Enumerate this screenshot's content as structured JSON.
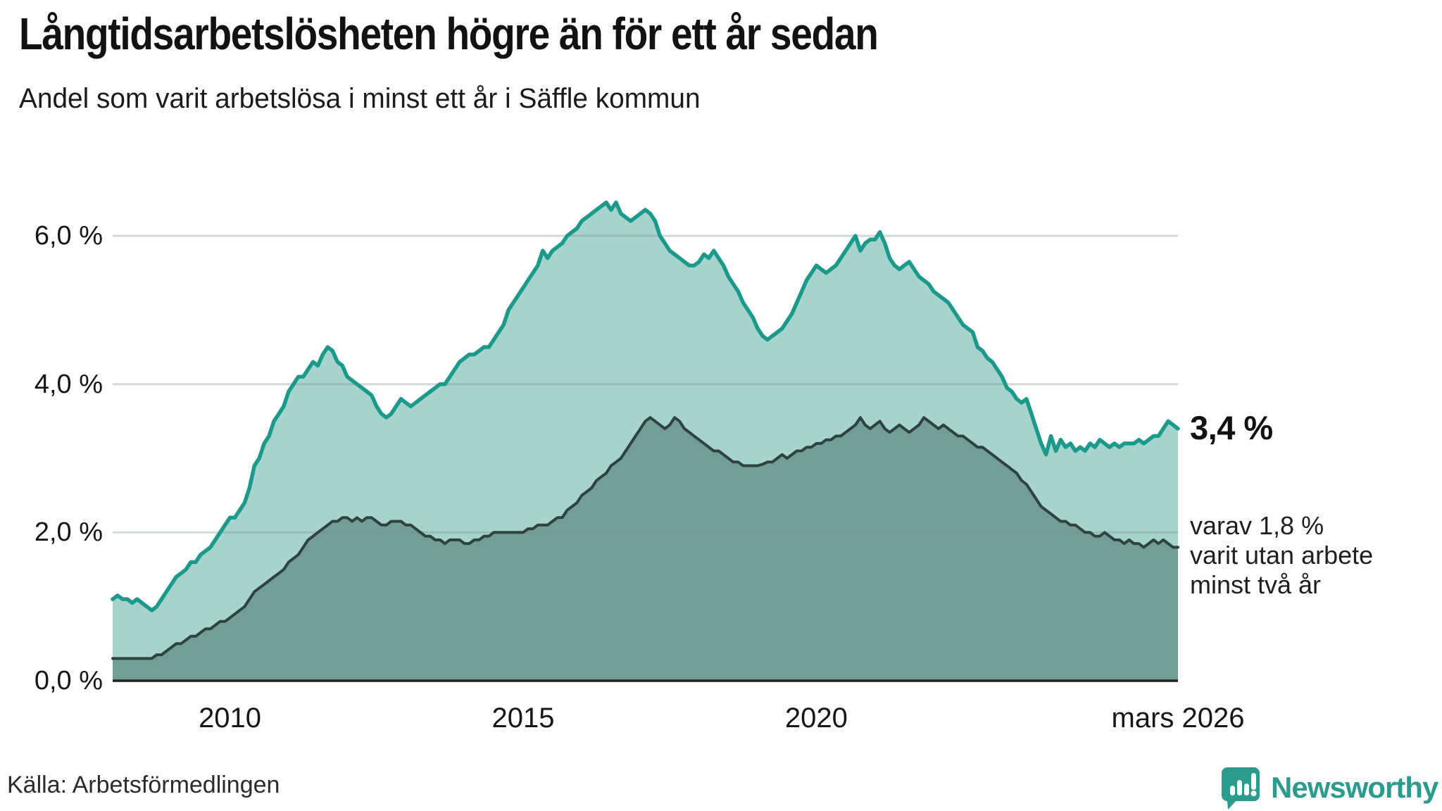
{
  "header": {
    "title": "Långtidsarbetslösheten högre än för ett år sedan",
    "subtitle": "Andel som varit arbetslösa i minst ett år i Säffle kommun"
  },
  "chart_data": {
    "type": "area",
    "title": "Långtidsarbetslösheten högre än för ett år sedan",
    "subtitle": "Andel som varit arbetslösa i minst ett år i Säffle kommun",
    "unit": "percent",
    "frequency": "monthly",
    "x_start": "2008-01",
    "x_end": "2026-03",
    "ylim": [
      0,
      6.6
    ],
    "grid": "horizontal",
    "grid_values": [
      2,
      4,
      6
    ],
    "y_ticks": [
      {
        "label": "0,0 %",
        "value": 0
      },
      {
        "label": "2,0 %",
        "value": 2
      },
      {
        "label": "4,0 %",
        "value": 4
      },
      {
        "label": "6,0 %",
        "value": 6
      }
    ],
    "x_ticks": [
      {
        "label": "2010",
        "month_index": 24
      },
      {
        "label": "2015",
        "month_index": 84
      },
      {
        "label": "2020",
        "month_index": 144
      },
      {
        "label": "mars 2026",
        "month_index": 218
      }
    ],
    "series": [
      {
        "id": "minst-ett-ar",
        "name": "Andel arbetslösa minst ett år",
        "line_color": "#1b9a8c",
        "fill_color": "#a6d4cd",
        "end_value": 3.4,
        "values": [
          1.1,
          1.15,
          1.1,
          1.1,
          1.05,
          1.1,
          1.05,
          1.0,
          0.95,
          1.0,
          1.1,
          1.2,
          1.3,
          1.4,
          1.45,
          1.5,
          1.6,
          1.6,
          1.7,
          1.75,
          1.8,
          1.9,
          2.0,
          2.1,
          2.2,
          2.2,
          2.3,
          2.4,
          2.6,
          2.9,
          3.0,
          3.2,
          3.3,
          3.5,
          3.6,
          3.7,
          3.9,
          4.0,
          4.1,
          4.1,
          4.2,
          4.3,
          4.25,
          4.4,
          4.5,
          4.45,
          4.3,
          4.25,
          4.1,
          4.05,
          4.0,
          3.95,
          3.9,
          3.85,
          3.7,
          3.6,
          3.55,
          3.6,
          3.7,
          3.8,
          3.75,
          3.7,
          3.75,
          3.8,
          3.85,
          3.9,
          3.95,
          4.0,
          4.0,
          4.1,
          4.2,
          4.3,
          4.35,
          4.4,
          4.4,
          4.45,
          4.5,
          4.5,
          4.6,
          4.7,
          4.8,
          5.0,
          5.1,
          5.2,
          5.3,
          5.4,
          5.5,
          5.6,
          5.8,
          5.7,
          5.8,
          5.85,
          5.9,
          6.0,
          6.05,
          6.1,
          6.2,
          6.25,
          6.3,
          6.35,
          6.4,
          6.45,
          6.35,
          6.45,
          6.3,
          6.25,
          6.2,
          6.25,
          6.3,
          6.35,
          6.3,
          6.2,
          6.0,
          5.9,
          5.8,
          5.75,
          5.7,
          5.65,
          5.6,
          5.6,
          5.65,
          5.75,
          5.7,
          5.8,
          5.7,
          5.6,
          5.45,
          5.35,
          5.25,
          5.1,
          5.0,
          4.9,
          4.75,
          4.65,
          4.6,
          4.65,
          4.7,
          4.75,
          4.85,
          4.95,
          5.1,
          5.25,
          5.4,
          5.5,
          5.6,
          5.55,
          5.5,
          5.55,
          5.6,
          5.7,
          5.8,
          5.9,
          6.0,
          5.8,
          5.9,
          5.95,
          5.95,
          6.05,
          5.9,
          5.7,
          5.6,
          5.55,
          5.6,
          5.65,
          5.55,
          5.45,
          5.4,
          5.35,
          5.25,
          5.2,
          5.15,
          5.1,
          5.0,
          4.9,
          4.8,
          4.75,
          4.7,
          4.5,
          4.45,
          4.35,
          4.3,
          4.2,
          4.1,
          3.95,
          3.9,
          3.8,
          3.75,
          3.8,
          3.6,
          3.4,
          3.2,
          3.05,
          3.3,
          3.1,
          3.25,
          3.15,
          3.2,
          3.1,
          3.15,
          3.1,
          3.2,
          3.15,
          3.25,
          3.2,
          3.15,
          3.2,
          3.15,
          3.2,
          3.2,
          3.2,
          3.25,
          3.2,
          3.25,
          3.3,
          3.3,
          3.4,
          3.5,
          3.45,
          3.4
        ]
      },
      {
        "id": "minst-tva-ar",
        "name": "Andel arbetslösa minst två år",
        "line_color": "#2e423e",
        "fill_color": "#729e97",
        "end_value": 1.8,
        "values": [
          0.3,
          0.3,
          0.3,
          0.3,
          0.3,
          0.3,
          0.3,
          0.3,
          0.3,
          0.35,
          0.35,
          0.4,
          0.45,
          0.5,
          0.5,
          0.55,
          0.6,
          0.6,
          0.65,
          0.7,
          0.7,
          0.75,
          0.8,
          0.8,
          0.85,
          0.9,
          0.95,
          1.0,
          1.1,
          1.2,
          1.25,
          1.3,
          1.35,
          1.4,
          1.45,
          1.5,
          1.6,
          1.65,
          1.7,
          1.8,
          1.9,
          1.95,
          2.0,
          2.05,
          2.1,
          2.15,
          2.15,
          2.2,
          2.2,
          2.15,
          2.2,
          2.15,
          2.2,
          2.2,
          2.15,
          2.1,
          2.1,
          2.15,
          2.15,
          2.15,
          2.1,
          2.1,
          2.05,
          2.0,
          1.95,
          1.95,
          1.9,
          1.9,
          1.85,
          1.9,
          1.9,
          1.9,
          1.85,
          1.85,
          1.9,
          1.9,
          1.95,
          1.95,
          2.0,
          2.0,
          2.0,
          2.0,
          2.0,
          2.0,
          2.0,
          2.05,
          2.05,
          2.1,
          2.1,
          2.1,
          2.15,
          2.2,
          2.2,
          2.3,
          2.35,
          2.4,
          2.5,
          2.55,
          2.6,
          2.7,
          2.75,
          2.8,
          2.9,
          2.95,
          3.0,
          3.1,
          3.2,
          3.3,
          3.4,
          3.5,
          3.55,
          3.5,
          3.45,
          3.4,
          3.45,
          3.55,
          3.5,
          3.4,
          3.35,
          3.3,
          3.25,
          3.2,
          3.15,
          3.1,
          3.1,
          3.05,
          3.0,
          2.95,
          2.95,
          2.9,
          2.9,
          2.9,
          2.9,
          2.92,
          2.95,
          2.95,
          3.0,
          3.05,
          3.0,
          3.05,
          3.1,
          3.1,
          3.15,
          3.15,
          3.2,
          3.2,
          3.25,
          3.25,
          3.3,
          3.3,
          3.35,
          3.4,
          3.45,
          3.55,
          3.45,
          3.4,
          3.45,
          3.5,
          3.4,
          3.35,
          3.4,
          3.45,
          3.4,
          3.35,
          3.4,
          3.45,
          3.55,
          3.5,
          3.45,
          3.4,
          3.45,
          3.4,
          3.35,
          3.3,
          3.3,
          3.25,
          3.2,
          3.15,
          3.15,
          3.1,
          3.05,
          3.0,
          2.95,
          2.9,
          2.85,
          2.8,
          2.7,
          2.65,
          2.55,
          2.45,
          2.35,
          2.3,
          2.25,
          2.2,
          2.15,
          2.15,
          2.1,
          2.1,
          2.05,
          2.0,
          2.0,
          1.95,
          1.95,
          2.0,
          1.95,
          1.9,
          1.9,
          1.85,
          1.9,
          1.85,
          1.85,
          1.8,
          1.85,
          1.9,
          1.85,
          1.9,
          1.85,
          1.8,
          1.8
        ]
      }
    ],
    "end_value_labels": {
      "primary": "3,4 %",
      "secondary_lines": [
        "varav 1,8 %",
        "varit utan arbete",
        "minst två år"
      ]
    }
  },
  "footer": {
    "source": "Källa: Arbetsförmedlingen",
    "brand": "Newsworthy"
  },
  "colors": {
    "accent_teal": "#1b9a8c",
    "light_fill": "#a6d4cd",
    "dark_fill": "#729e97",
    "dark_line": "#2e423e",
    "grid_gray": "#e2e5e7",
    "brand_teal": "#2b9b8e",
    "text_black": "#121212"
  }
}
